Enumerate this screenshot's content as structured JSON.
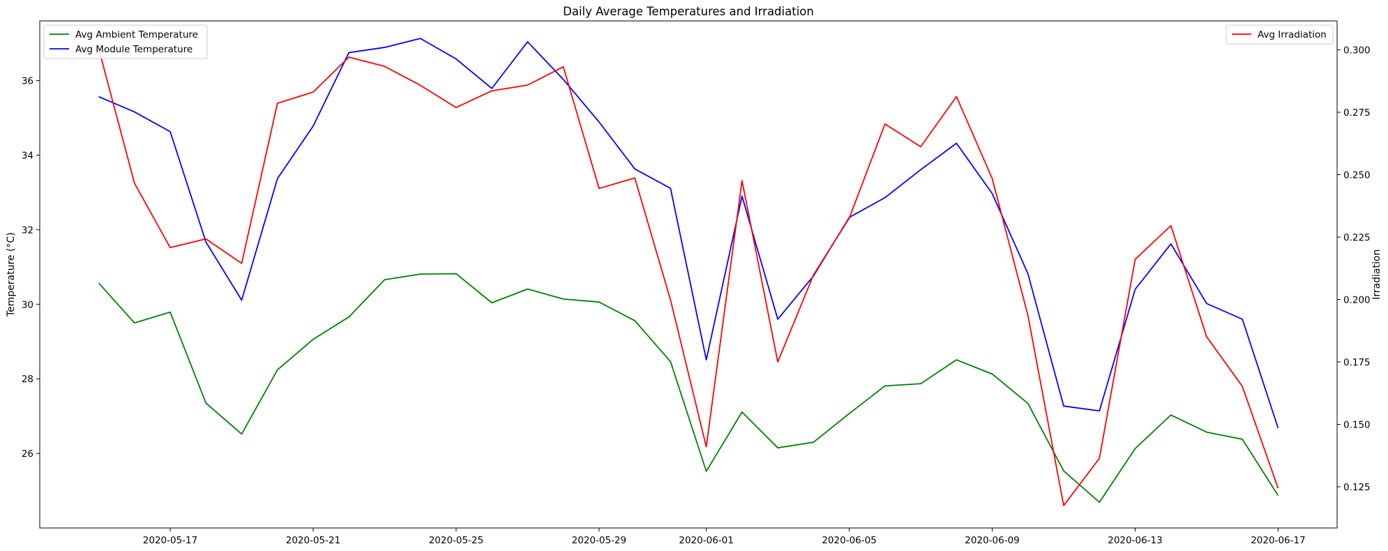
{
  "chart_data": {
    "type": "line",
    "title": "Daily Average Temperatures and Irradiation",
    "xlabel": "",
    "ylabel_left": "Temperature (°C)",
    "ylabel_right": "Irradiation",
    "x": [
      "2020-05-15",
      "2020-05-16",
      "2020-05-17",
      "2020-05-18",
      "2020-05-19",
      "2020-05-20",
      "2020-05-21",
      "2020-05-22",
      "2020-05-23",
      "2020-05-24",
      "2020-05-25",
      "2020-05-26",
      "2020-05-27",
      "2020-05-28",
      "2020-05-29",
      "2020-05-30",
      "2020-05-31",
      "2020-06-01",
      "2020-06-02",
      "2020-06-03",
      "2020-06-04",
      "2020-06-05",
      "2020-06-06",
      "2020-06-07",
      "2020-06-08",
      "2020-06-09",
      "2020-06-10",
      "2020-06-11",
      "2020-06-12",
      "2020-06-13",
      "2020-06-14",
      "2020-06-15",
      "2020-06-16",
      "2020-06-17"
    ],
    "x_ticks": [
      "2020-05-17",
      "2020-05-21",
      "2020-05-25",
      "2020-05-29",
      "2020-06-01",
      "2020-06-05",
      "2020-06-09",
      "2020-06-13",
      "2020-06-17"
    ],
    "y_left_ticks": [
      26,
      28,
      30,
      32,
      34,
      36
    ],
    "y_left_lim": [
      24.0,
      37.6
    ],
    "y_right_ticks": [
      0.125,
      0.15,
      0.175,
      0.2,
      0.225,
      0.25,
      0.275,
      0.3
    ],
    "y_right_lim": [
      0.1085,
      0.3116
    ],
    "grid": false,
    "series": [
      {
        "name": "Avg Ambient Temperature",
        "axis": "left",
        "color": "#008000",
        "values": [
          30.57,
          29.5,
          29.79,
          27.35,
          26.52,
          28.24,
          29.06,
          29.66,
          30.66,
          30.81,
          30.82,
          30.04,
          30.41,
          30.14,
          30.06,
          29.56,
          28.46,
          25.52,
          27.11,
          26.15,
          26.3,
          27.07,
          27.81,
          27.87,
          28.51,
          28.13,
          27.34,
          25.53,
          24.69,
          26.13,
          27.03,
          26.57,
          26.38,
          24.87
        ]
      },
      {
        "name": "Avg Module Temperature",
        "axis": "left",
        "color": "#0000ff",
        "values": [
          35.57,
          35.16,
          34.63,
          31.67,
          30.11,
          33.37,
          34.78,
          36.75,
          36.89,
          37.13,
          36.58,
          35.79,
          37.04,
          36.03,
          34.89,
          33.63,
          33.11,
          28.51,
          32.9,
          29.6,
          30.76,
          32.33,
          32.86,
          33.61,
          34.32,
          32.97,
          30.82,
          27.27,
          27.14,
          30.4,
          31.62,
          30.02,
          29.6,
          26.68
        ]
      },
      {
        "name": "Avg Irradiation",
        "axis": "right",
        "color": "#ff0000",
        "values": [
          0.3005,
          0.2466,
          0.2208,
          0.2243,
          0.2145,
          0.2786,
          0.2831,
          0.2971,
          0.2934,
          0.2858,
          0.2769,
          0.2836,
          0.2859,
          0.2932,
          0.2445,
          0.2487,
          0.1998,
          0.141,
          0.2476,
          0.175,
          0.2099,
          0.2326,
          0.2703,
          0.2612,
          0.2813,
          0.2485,
          0.1936,
          0.1175,
          0.1364,
          0.2161,
          0.2296,
          0.1851,
          0.1652,
          0.1244
        ]
      }
    ],
    "legend_left_position": "upper-left",
    "legend_right_position": "upper-right"
  }
}
